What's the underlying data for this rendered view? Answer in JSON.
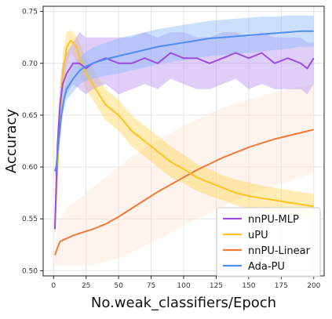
{
  "chart_data": {
    "type": "line",
    "xlabel": "No.weak_classifiers/Epoch",
    "ylabel": "Accuracy",
    "xlim": [
      -8,
      208
    ],
    "ylim": [
      0.495,
      0.755
    ],
    "x_ticks": [
      0,
      25,
      50,
      75,
      100,
      125,
      150,
      175,
      200
    ],
    "y_ticks": [
      0.5,
      0.55,
      0.6,
      0.65,
      0.7,
      0.75
    ],
    "y_tick_labels": [
      "0.50",
      "0.55",
      "0.60",
      "0.65",
      "0.70",
      "0.75"
    ],
    "grid": true,
    "legend_position": "lower-right",
    "series": [
      {
        "name": "nnPU-MLP",
        "color": "#9b4de0",
        "band_color": "#b894f0",
        "x": [
          1,
          3,
          5,
          7,
          10,
          15,
          20,
          25,
          30,
          40,
          50,
          60,
          70,
          80,
          90,
          100,
          110,
          120,
          130,
          140,
          150,
          160,
          170,
          180,
          190,
          195,
          200
        ],
        "y": [
          0.54,
          0.62,
          0.66,
          0.68,
          0.69,
          0.7,
          0.7,
          0.695,
          0.7,
          0.705,
          0.7,
          0.7,
          0.705,
          0.7,
          0.71,
          0.705,
          0.705,
          0.7,
          0.705,
          0.71,
          0.705,
          0.71,
          0.7,
          0.705,
          0.7,
          0.695,
          0.705
        ],
        "upper": [
          0.55,
          0.64,
          0.68,
          0.7,
          0.71,
          0.72,
          0.73,
          0.725,
          0.725,
          0.725,
          0.725,
          0.725,
          0.73,
          0.725,
          0.73,
          0.73,
          0.725,
          0.725,
          0.73,
          0.73,
          0.725,
          0.73,
          0.725,
          0.725,
          0.725,
          0.72,
          0.72
        ],
        "lower": [
          0.53,
          0.6,
          0.64,
          0.66,
          0.67,
          0.68,
          0.675,
          0.67,
          0.675,
          0.68,
          0.67,
          0.675,
          0.68,
          0.675,
          0.685,
          0.68,
          0.675,
          0.675,
          0.68,
          0.685,
          0.675,
          0.68,
          0.675,
          0.675,
          0.675,
          0.67,
          0.68
        ]
      },
      {
        "name": "uPU",
        "color": "#ffc21f",
        "band_color": "#ffd65c",
        "x": [
          1,
          3,
          5,
          7,
          10,
          13,
          15,
          18,
          20,
          25,
          30,
          35,
          40,
          50,
          60,
          70,
          80,
          90,
          100,
          110,
          120,
          130,
          140,
          150,
          160,
          170,
          180,
          190,
          200
        ],
        "y": [
          0.54,
          0.6,
          0.65,
          0.69,
          0.715,
          0.722,
          0.72,
          0.715,
          0.705,
          0.69,
          0.68,
          0.67,
          0.66,
          0.65,
          0.635,
          0.625,
          0.615,
          0.605,
          0.598,
          0.59,
          0.585,
          0.58,
          0.575,
          0.572,
          0.57,
          0.568,
          0.566,
          0.564,
          0.562
        ],
        "upper": [
          0.55,
          0.62,
          0.67,
          0.71,
          0.73,
          0.732,
          0.73,
          0.725,
          0.72,
          0.705,
          0.695,
          0.685,
          0.675,
          0.665,
          0.65,
          0.64,
          0.63,
          0.62,
          0.612,
          0.603,
          0.598,
          0.592,
          0.588,
          0.585,
          0.582,
          0.58,
          0.578,
          0.576,
          0.574
        ],
        "lower": [
          0.53,
          0.58,
          0.63,
          0.67,
          0.7,
          0.71,
          0.708,
          0.7,
          0.69,
          0.675,
          0.665,
          0.655,
          0.645,
          0.635,
          0.62,
          0.61,
          0.6,
          0.59,
          0.584,
          0.577,
          0.572,
          0.568,
          0.563,
          0.56,
          0.558,
          0.556,
          0.554,
          0.552,
          0.55
        ]
      },
      {
        "name": "nnPU-Linear",
        "color": "#f07a3e",
        "band_color": "#fde5d6",
        "x": [
          1,
          3,
          5,
          8,
          10,
          15,
          20,
          25,
          30,
          40,
          50,
          60,
          70,
          80,
          90,
          100,
          110,
          120,
          130,
          140,
          150,
          160,
          170,
          180,
          190,
          200
        ],
        "y": [
          0.515,
          0.522,
          0.528,
          0.53,
          0.531,
          0.534,
          0.536,
          0.538,
          0.54,
          0.545,
          0.552,
          0.56,
          0.568,
          0.576,
          0.583,
          0.59,
          0.597,
          0.603,
          0.609,
          0.614,
          0.619,
          0.623,
          0.627,
          0.63,
          0.633,
          0.636
        ],
        "upper": [
          0.525,
          0.54,
          0.55,
          0.555,
          0.56,
          0.565,
          0.57,
          0.575,
          0.58,
          0.59,
          0.6,
          0.61,
          0.618,
          0.626,
          0.633,
          0.64,
          0.646,
          0.652,
          0.657,
          0.661,
          0.665,
          0.669,
          0.672,
          0.675,
          0.678,
          0.68
        ],
        "lower": [
          0.505,
          0.505,
          0.505,
          0.505,
          0.505,
          0.505,
          0.505,
          0.505,
          0.506,
          0.508,
          0.512,
          0.518,
          0.524,
          0.53,
          0.537,
          0.544,
          0.55,
          0.556,
          0.562,
          0.568,
          0.573,
          0.578,
          0.582,
          0.586,
          0.59,
          0.594
        ]
      },
      {
        "name": "Ada-PU",
        "color": "#4f8ff2",
        "band_color": "#8db9fa",
        "x": [
          1,
          2,
          4,
          6,
          8,
          10,
          15,
          20,
          25,
          30,
          40,
          50,
          60,
          70,
          80,
          90,
          100,
          110,
          120,
          130,
          140,
          150,
          160,
          170,
          180,
          190,
          200
        ],
        "y": [
          0.596,
          0.6,
          0.625,
          0.65,
          0.665,
          0.675,
          0.685,
          0.693,
          0.697,
          0.7,
          0.704,
          0.707,
          0.71,
          0.713,
          0.716,
          0.718,
          0.72,
          0.722,
          0.724,
          0.725,
          0.726,
          0.727,
          0.728,
          0.729,
          0.73,
          0.731,
          0.731
        ],
        "upper": [
          0.6,
          0.608,
          0.635,
          0.66,
          0.675,
          0.685,
          0.698,
          0.706,
          0.711,
          0.715,
          0.72,
          0.724,
          0.727,
          0.73,
          0.733,
          0.735,
          0.737,
          0.739,
          0.741,
          0.742,
          0.743,
          0.744,
          0.745,
          0.745,
          0.746,
          0.746,
          0.746
        ],
        "lower": [
          0.592,
          0.592,
          0.615,
          0.64,
          0.655,
          0.665,
          0.672,
          0.68,
          0.683,
          0.685,
          0.688,
          0.69,
          0.693,
          0.696,
          0.699,
          0.701,
          0.703,
          0.705,
          0.707,
          0.708,
          0.709,
          0.71,
          0.711,
          0.713,
          0.714,
          0.716,
          0.716
        ]
      }
    ]
  }
}
